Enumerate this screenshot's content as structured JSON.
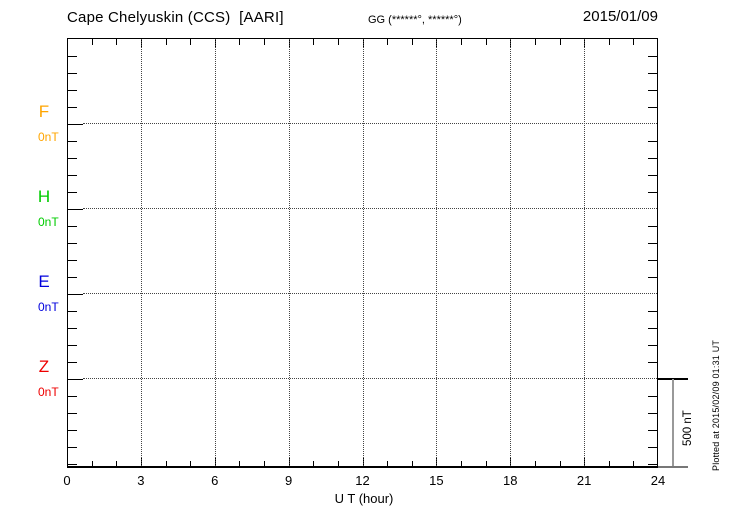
{
  "header": {
    "station_title": "Cape Chelyuskin (CCS)  [AARI]",
    "coords_label": "GG (******°, ******°)",
    "date": "2015/01/09"
  },
  "x_axis": {
    "label": "U T (hour)",
    "major_ticks": [
      0,
      3,
      6,
      9,
      12,
      15,
      18,
      21,
      24
    ],
    "hours_span": 24
  },
  "channels": [
    {
      "label": "F",
      "baseline_label": "0nT",
      "color": "#FFA500"
    },
    {
      "label": "H",
      "baseline_label": "0nT",
      "color": "#00CC00"
    },
    {
      "label": "E",
      "baseline_label": "0nT",
      "color": "#0000DD"
    },
    {
      "label": "Z",
      "baseline_label": "0nT",
      "color": "#EE0000"
    }
  ],
  "scale_bar": {
    "label": "500 nT"
  },
  "footer_note": "Plotted at 2015/02/09 01:31 UT",
  "chart_data": {
    "type": "line",
    "title": "Cape Chelyuskin (CCS) [AARI]",
    "date": "2015/01/09",
    "xlabel": "U T (hour)",
    "x_range": [
      0,
      24
    ],
    "x_major_ticks": [
      0,
      3,
      6,
      9,
      12,
      15,
      18,
      21,
      24
    ],
    "x_minor_tick_step_hours": 1,
    "y_scale_bar_nT": 500,
    "y_minor_tick_nT": 100,
    "grid": "dotted vertical lines every 3 hours; dotted horizontal line at each channel 0nT baseline",
    "legend_position": "left margin (channel letters with 0nT baseline labels)",
    "series": [
      {
        "name": "F",
        "color": "#FFA500",
        "baseline_value_label": "0nT",
        "values": []
      },
      {
        "name": "H",
        "color": "#00CC00",
        "baseline_value_label": "0nT",
        "values": []
      },
      {
        "name": "E",
        "color": "#0000DD",
        "baseline_value_label": "0nT",
        "values": []
      },
      {
        "name": "Z",
        "color": "#EE0000",
        "baseline_value_label": "0nT",
        "values": []
      }
    ],
    "note": "No trace data visible in plot area (empty magnetogram day plot)"
  }
}
